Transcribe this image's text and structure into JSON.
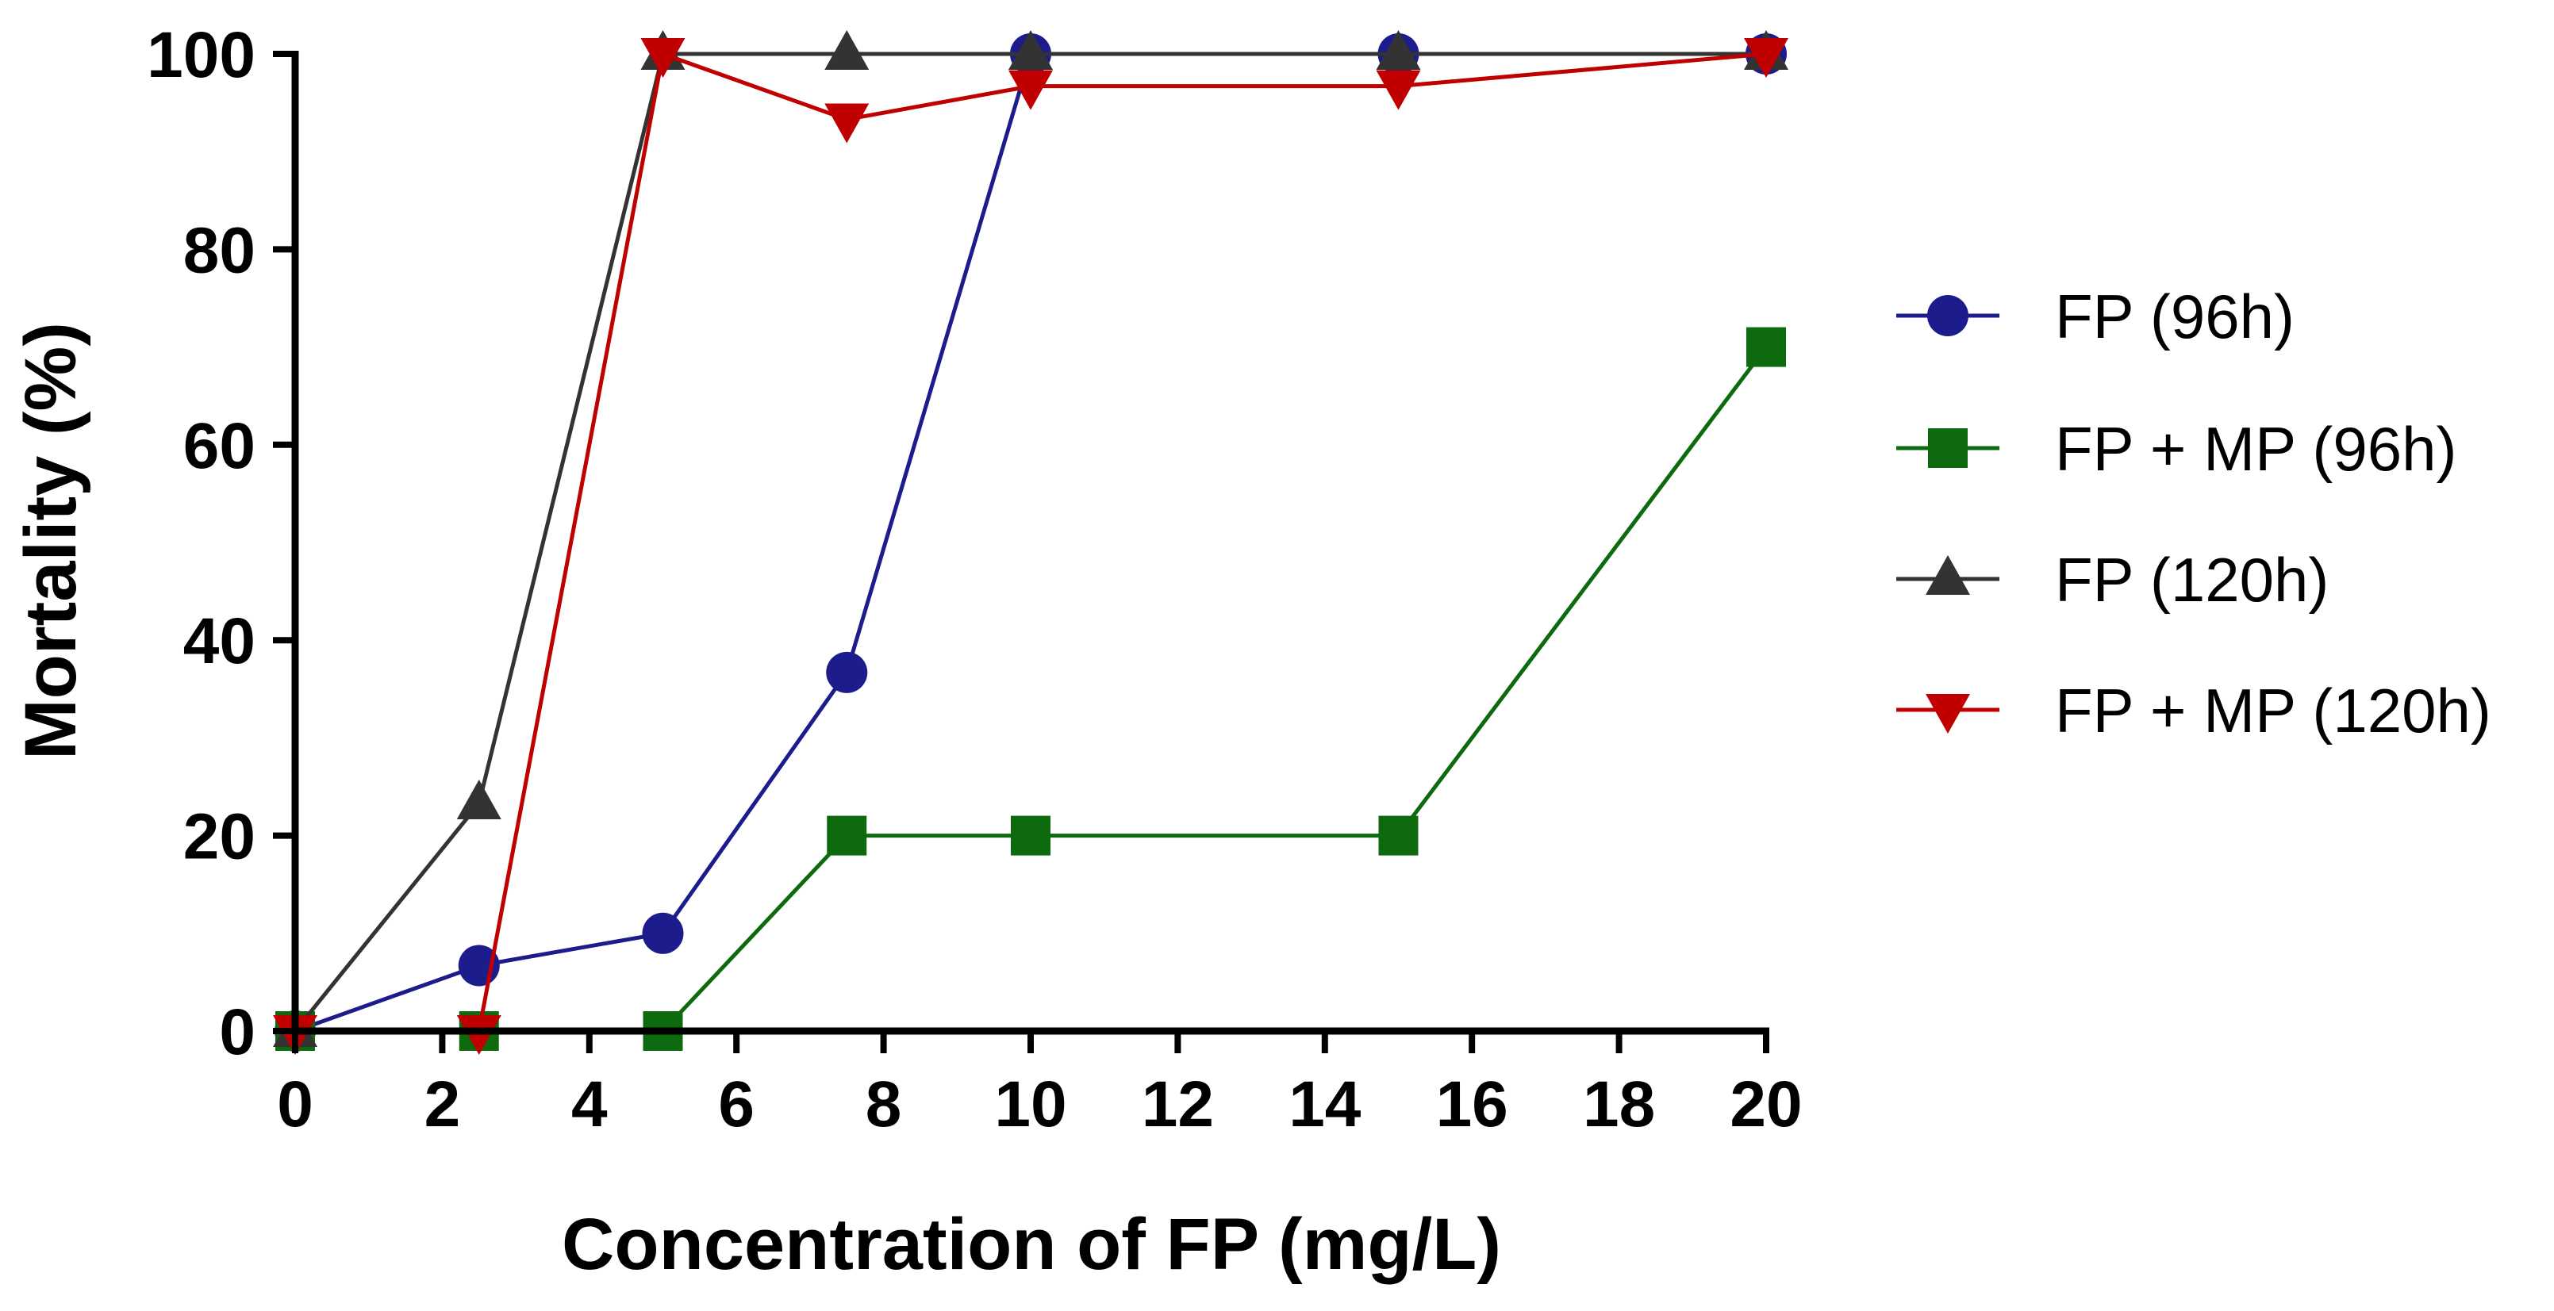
{
  "chart_data": {
    "type": "line",
    "title": "",
    "xlabel": "Concentration of FP  (mg/L)",
    "ylabel": "Mortality (%)",
    "xlim": [
      0,
      20
    ],
    "ylim": [
      0,
      100
    ],
    "xticks": [
      0,
      2,
      4,
      6,
      8,
      10,
      12,
      14,
      16,
      18,
      20
    ],
    "yticks": [
      0,
      20,
      40,
      60,
      80,
      100
    ],
    "grid": false,
    "legend_position": "right",
    "series": [
      {
        "name": "FP (96h)",
        "color": "#1c1c8c",
        "marker": "circle",
        "x": [
          0,
          2.5,
          5,
          7.5,
          10,
          15,
          20
        ],
        "y": [
          0,
          6.7,
          10,
          36.7,
          100,
          100,
          100
        ]
      },
      {
        "name": "FP + MP (96h)",
        "color": "#0e6a0e",
        "marker": "square",
        "x": [
          0,
          2.5,
          5,
          7.5,
          10,
          15,
          20
        ],
        "y": [
          0,
          0,
          0,
          20,
          20,
          20,
          70
        ]
      },
      {
        "name": "FP (120h)",
        "color": "#333333",
        "marker": "triangle-up",
        "x": [
          0,
          2.5,
          5,
          7.5,
          10,
          15,
          20
        ],
        "y": [
          0,
          23.3,
          100,
          100,
          100,
          100,
          100
        ]
      },
      {
        "name": "FP + MP (120h)",
        "color": "#c00000",
        "marker": "triangle-down",
        "x": [
          0,
          2.5,
          5,
          7.5,
          10,
          15,
          20
        ],
        "y": [
          0,
          0,
          100,
          93.3,
          96.7,
          96.7,
          100
        ]
      }
    ]
  }
}
